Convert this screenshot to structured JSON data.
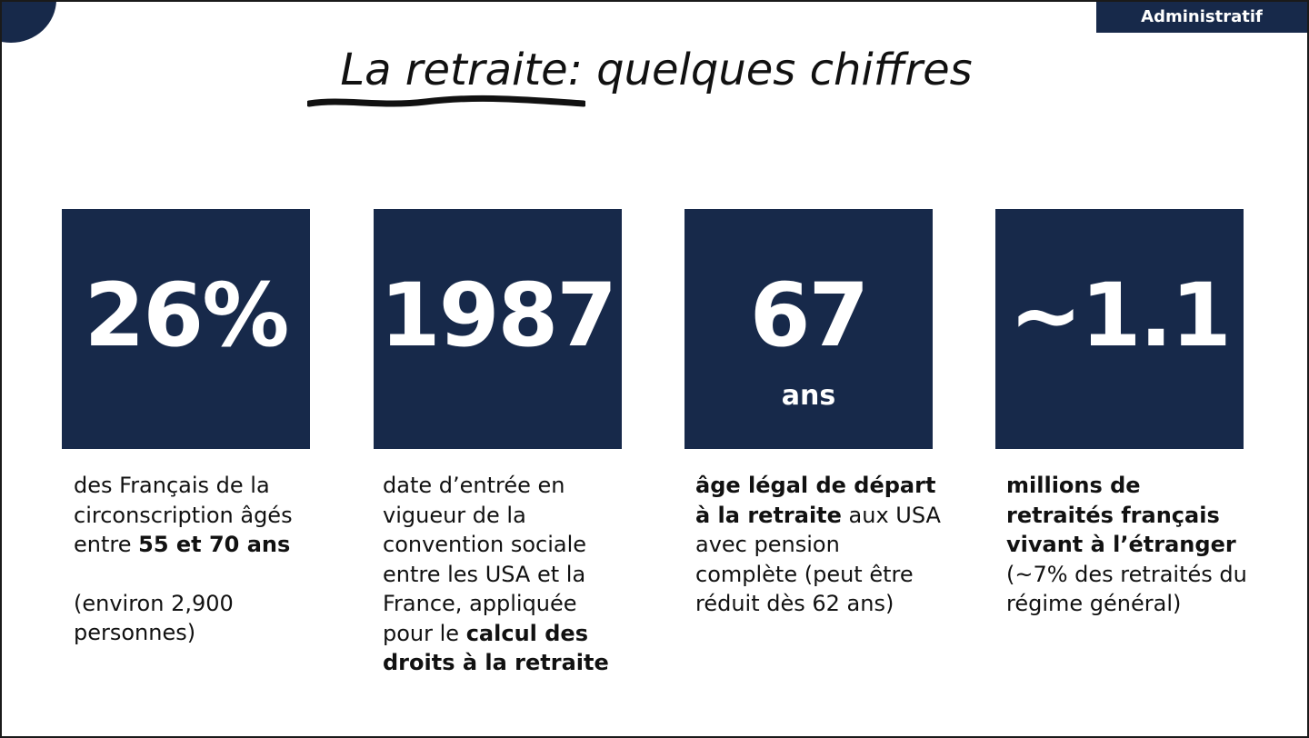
{
  "tag": "Administratif",
  "title": "La retraite: quelques chiffres",
  "colors": {
    "accent": "#17294a",
    "text": "#111111"
  },
  "stats": [
    {
      "value": "26%",
      "unit": "",
      "description": {
        "part1": "des Français de la circonscription âgés entre ",
        "bold1": "55 et 70 ans",
        "part2": "(environ 2,900 personnes)"
      }
    },
    {
      "value": "1987",
      "unit": "",
      "description": {
        "part1": "date d’entrée en vigueur de la convention sociale entre les USA et la France, appliquée pour le ",
        "bold1": "calcul des droits à la retraite"
      }
    },
    {
      "value": "67",
      "unit": "ans",
      "description": {
        "bold1": "âge légal de départ à la retraite",
        "part1": " aux USA avec pension complète (peut être réduit dès 62 ans)"
      }
    },
    {
      "value": "~1.1",
      "unit": "",
      "description": {
        "bold1": "millions de retraités français vivant à l’étranger",
        "part1": " (~7% des retraités du régime général)"
      }
    }
  ]
}
